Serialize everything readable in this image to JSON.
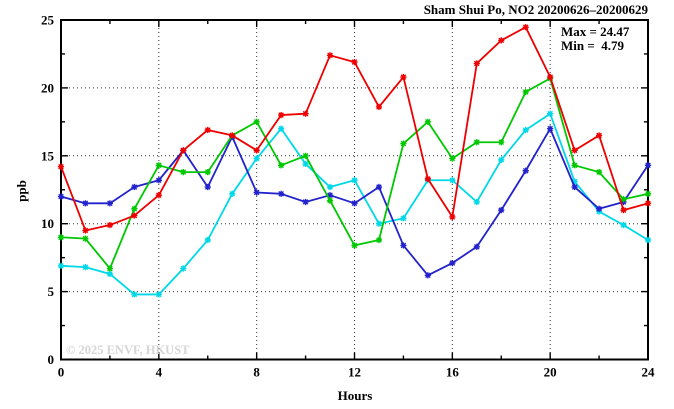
{
  "title": "Sham Shui Po, NO2 20200626–20200629",
  "stats": {
    "max_label": "Max = 24.47",
    "min_label": "Min =  4.79"
  },
  "watermark": "© 2025 ENVF, HKUST",
  "chart_data": {
    "type": "line",
    "title": "Sham Shui Po, NO2 20200626–20200629",
    "xlabel": "Hours",
    "ylabel": "ppb",
    "xlim": [
      0,
      24
    ],
    "ylim": [
      0,
      25
    ],
    "grid": true,
    "legend_position": "none",
    "x_major_ticks": [
      0,
      4,
      8,
      12,
      16,
      20,
      24
    ],
    "x_minor_step": 2,
    "y_major_ticks": [
      0,
      5,
      10,
      15,
      20,
      25
    ],
    "y_minor_step": 2.5,
    "max_value": 24.47,
    "min_value": 4.79,
    "x": [
      0,
      1,
      2,
      3,
      4,
      5,
      6,
      7,
      8,
      9,
      10,
      11,
      12,
      13,
      14,
      15,
      16,
      17,
      18,
      19,
      20,
      21,
      22,
      23,
      24
    ],
    "series": [
      {
        "name": "cyan",
        "color": "#00d8e8",
        "values": [
          6.9,
          6.8,
          6.3,
          4.79,
          4.79,
          6.7,
          8.8,
          12.2,
          14.8,
          17.0,
          14.4,
          12.7,
          13.2,
          10.0,
          10.4,
          13.2,
          13.2,
          11.6,
          14.7,
          16.9,
          18.1,
          13.1,
          10.9,
          9.9,
          8.8
        ]
      },
      {
        "name": "blue",
        "color": "#2222cc",
        "values": [
          12.0,
          11.5,
          11.5,
          12.7,
          13.2,
          15.4,
          12.7,
          16.4,
          12.3,
          12.2,
          11.6,
          12.1,
          11.5,
          12.7,
          8.4,
          6.2,
          7.1,
          8.3,
          11.0,
          13.9,
          17.0,
          12.7,
          11.1,
          11.6,
          14.3
        ]
      },
      {
        "name": "green",
        "color": "#00c800",
        "values": [
          9.0,
          8.9,
          6.7,
          11.1,
          14.3,
          13.8,
          13.8,
          16.5,
          17.5,
          14.3,
          15.0,
          11.7,
          8.4,
          8.8,
          15.9,
          17.5,
          14.8,
          16.0,
          16.0,
          19.7,
          20.7,
          14.3,
          13.8,
          11.8,
          12.2
        ]
      },
      {
        "name": "red",
        "color": "#ee0000",
        "values": [
          14.2,
          9.5,
          9.9,
          10.6,
          12.1,
          15.4,
          16.9,
          16.5,
          15.4,
          18.0,
          18.1,
          22.4,
          21.9,
          18.6,
          20.8,
          13.3,
          10.5,
          21.8,
          23.5,
          24.47,
          20.8,
          15.4,
          16.5,
          11.0,
          11.5
        ]
      }
    ]
  }
}
